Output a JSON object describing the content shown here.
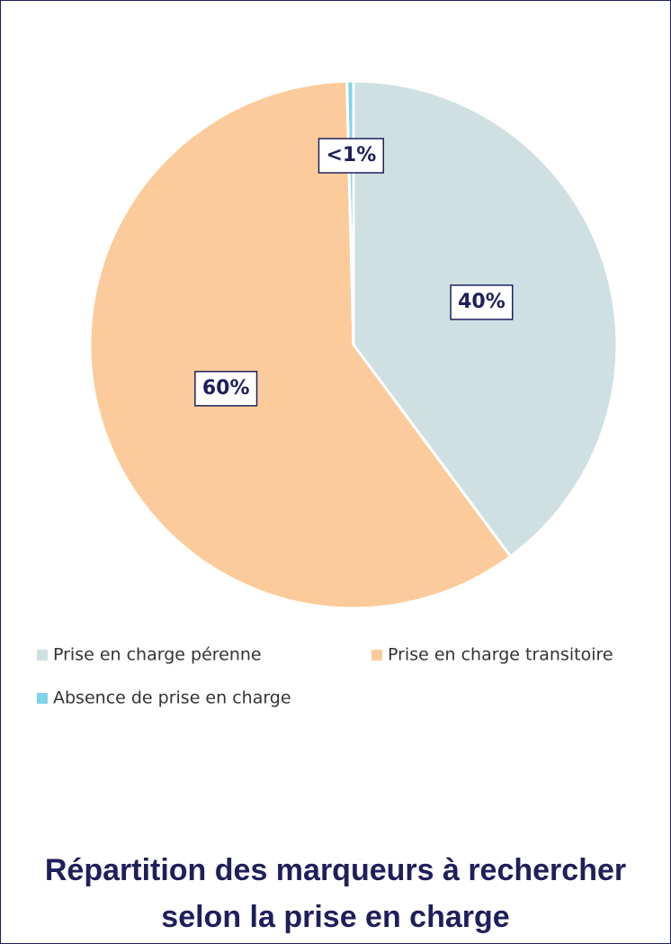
{
  "chart_data": {
    "type": "pie",
    "title": "Répartition des marqueurs à rechercher selon la prise en charge",
    "categories": [
      "Prise en charge pérenne",
      "Prise en charge transitoire",
      "Absence de prise en charge"
    ],
    "values": [
      40,
      60,
      0.4
    ],
    "value_labels": [
      "40%",
      "60%",
      "<1%"
    ],
    "colors": [
      "#cfe0e3",
      "#fccb9b",
      "#7fd4ea"
    ],
    "legend": "bottom"
  }
}
